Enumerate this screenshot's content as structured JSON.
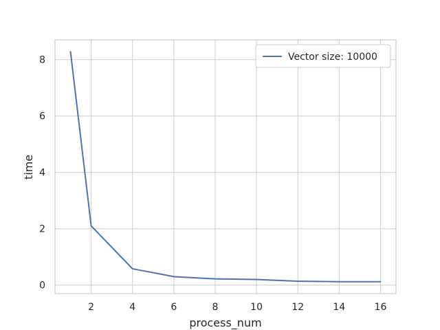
{
  "chart_data": {
    "type": "line",
    "title": "",
    "xlabel": "process_num",
    "ylabel": "time",
    "xlim": [
      0.25,
      16.75
    ],
    "ylim": [
      -0.3,
      8.7
    ],
    "x_ticks": [
      "2",
      "4",
      "6",
      "8",
      "10",
      "12",
      "14",
      "16"
    ],
    "y_ticks": [
      "0",
      "2",
      "4",
      "6",
      "8"
    ],
    "grid": true,
    "legend_position": "top-right",
    "series": [
      {
        "name": "Vector size: 10000",
        "color": "#4c72b0",
        "x": [
          1,
          2,
          4,
          6,
          8,
          10,
          12,
          14,
          16
        ],
        "y": [
          8.28,
          2.1,
          0.58,
          0.3,
          0.22,
          0.2,
          0.14,
          0.12,
          0.12
        ]
      }
    ]
  }
}
